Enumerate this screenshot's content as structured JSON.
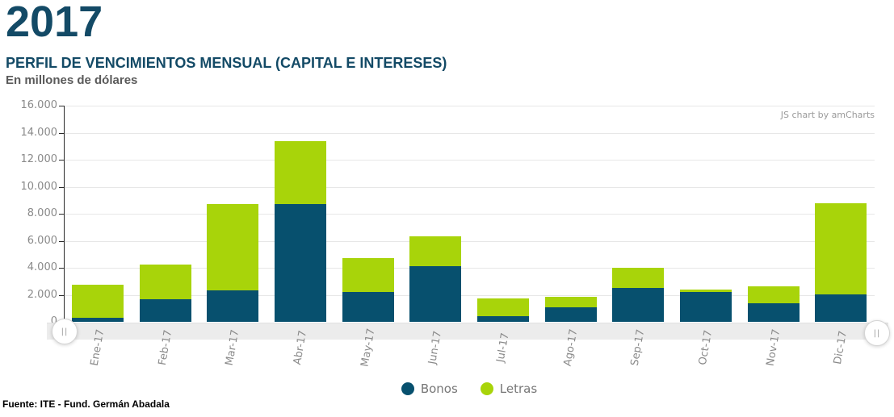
{
  "header": {
    "year": "2017",
    "title": "PERFIL DE VENCIMIENTOS MENSUAL (CAPITAL E INTERESES)",
    "subtitle": "En millones de dólares"
  },
  "watermark": "JS chart by amCharts",
  "footer": {
    "source": "Fuente: ITE - Fund. Germán Abadala"
  },
  "scrollbar": {
    "left_grip": "||",
    "right_grip": "||"
  },
  "colors": {
    "title": "#134a66",
    "bonos": "#07506e",
    "letras": "#a8d40a",
    "axis_text": "#8a8a8a",
    "grid": "#e7e7e7",
    "band": "#ececec",
    "subtitle_text": "#5a5a5a",
    "legend_text": "#777777",
    "watermark_text": "#9a9a9a"
  },
  "chart_data": {
    "type": "bar",
    "stacked": true,
    "title": "PERFIL DE VENCIMIENTOS MENSUAL (CAPITAL E INTERESES)",
    "units": "En millones de dólares",
    "categories": [
      "Ene-17",
      "Feb-17",
      "Mar-17",
      "Abr-17",
      "May-17",
      "Jun-17",
      "Jul-17",
      "Ago-17",
      "Sep-17",
      "Oct-17",
      "Nov-17",
      "Dic-17"
    ],
    "series": [
      {
        "name": "Bonos",
        "color": "#07506e",
        "values": [
          300,
          1650,
          2300,
          8700,
          2200,
          4100,
          400,
          1050,
          2500,
          2200,
          1400,
          2050
        ]
      },
      {
        "name": "Letras",
        "color": "#a8d40a",
        "values": [
          2450,
          2600,
          6400,
          4700,
          2500,
          2200,
          1350,
          800,
          1500,
          200,
          1250,
          6700
        ]
      }
    ],
    "totals": [
      2750,
      4250,
      8700,
      13400,
      4700,
      6300,
      1750,
      1850,
      4000,
      2400,
      2650,
      8750
    ],
    "xlabel": "",
    "ylabel": "",
    "ylim": [
      0,
      16000
    ],
    "ytick_interval": 2000,
    "ytick_labels": [
      "0",
      "2.000",
      "4.000",
      "6.000",
      "8.000",
      "10.000",
      "12.000",
      "14.000",
      "16.000"
    ],
    "grid": "horizontal",
    "legend_position": "bottom"
  }
}
